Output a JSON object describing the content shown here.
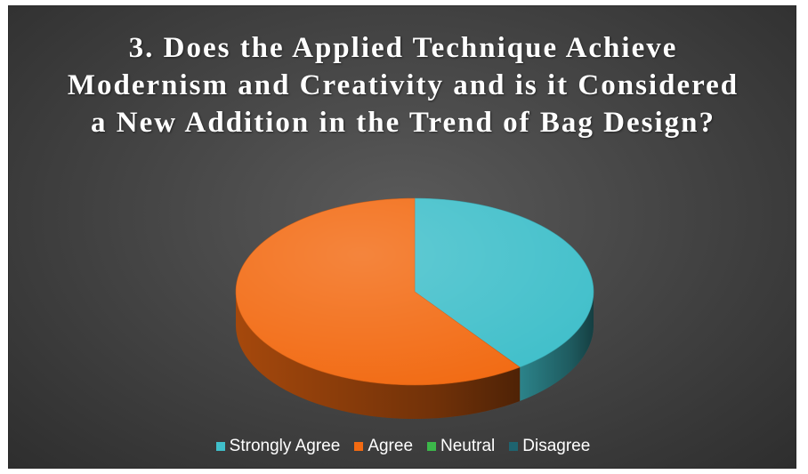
{
  "chart_data": {
    "type": "pie",
    "title": "3. Does the Applied Technique Achieve Modernism and Creativity and is it Considered a New Addition in the Trend of Bag Design?",
    "categories": [
      "Strongly Agree",
      "Agree",
      "Neutral",
      "Disagree"
    ],
    "values": [
      40,
      60,
      0,
      0
    ],
    "colors": [
      "#40BFCA",
      "#F26A12",
      "#3CB84A",
      "#1E6470"
    ],
    "legend_position": "bottom",
    "three_d": true
  }
}
